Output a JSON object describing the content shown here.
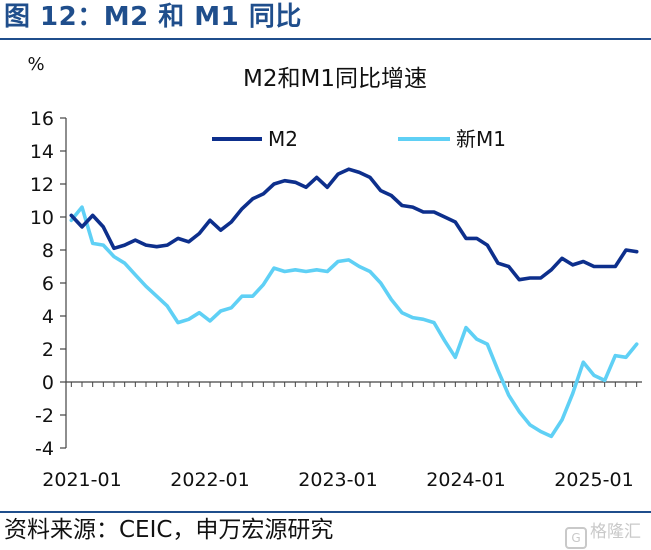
{
  "figure_title": "图 12：M2 和 M1 同比",
  "source_note": "资料来源：CEIC，申万宏源研究",
  "watermark": "格隆汇",
  "chart_data": {
    "type": "line",
    "title": "M2和M1同比增速",
    "y_unit": "%",
    "xlabel": "",
    "ylabel": "",
    "ylim": [
      -4,
      16
    ],
    "y_ticks": [
      -4,
      -2,
      0,
      2,
      4,
      6,
      8,
      10,
      12,
      14,
      16
    ],
    "x_tick_labels": [
      "2021-01",
      "2022-01",
      "2023-01",
      "2024-01",
      "2025-01"
    ],
    "grid": false,
    "legend_position": "top",
    "colors": {
      "M2": "#0d2f8c",
      "新M1": "#5fd0f5"
    },
    "x": [
      "2020-12",
      "2021-01",
      "2021-02",
      "2021-03",
      "2021-04",
      "2021-05",
      "2021-06",
      "2021-07",
      "2021-08",
      "2021-09",
      "2021-10",
      "2021-11",
      "2021-12",
      "2022-01",
      "2022-02",
      "2022-03",
      "2022-04",
      "2022-05",
      "2022-06",
      "2022-07",
      "2022-08",
      "2022-09",
      "2022-10",
      "2022-11",
      "2022-12",
      "2023-01",
      "2023-02",
      "2023-03",
      "2023-04",
      "2023-05",
      "2023-06",
      "2023-07",
      "2023-08",
      "2023-09",
      "2023-10",
      "2023-11",
      "2023-12",
      "2024-01",
      "2024-02",
      "2024-03",
      "2024-04",
      "2024-05",
      "2024-06",
      "2024-07",
      "2024-08",
      "2024-09",
      "2024-10",
      "2024-11",
      "2024-12",
      "2025-01",
      "2025-02",
      "2025-03",
      "2025-04",
      "2025-05"
    ],
    "series": [
      {
        "name": "M2",
        "values": [
          10.1,
          9.4,
          10.1,
          9.4,
          8.1,
          8.3,
          8.6,
          8.3,
          8.2,
          8.3,
          8.7,
          8.5,
          9.0,
          9.8,
          9.2,
          9.7,
          10.5,
          11.1,
          11.4,
          12.0,
          12.2,
          12.1,
          11.8,
          12.4,
          11.8,
          12.6,
          12.9,
          12.7,
          12.4,
          11.6,
          11.3,
          10.7,
          10.6,
          10.3,
          10.3,
          10.0,
          9.7,
          8.7,
          8.7,
          8.3,
          7.2,
          7.0,
          6.2,
          6.3,
          6.3,
          6.8,
          7.5,
          7.1,
          7.3,
          7.0,
          7.0,
          7.0,
          8.0,
          7.9
        ]
      },
      {
        "name": "新M1",
        "values": [
          9.8,
          10.6,
          8.4,
          8.3,
          7.6,
          7.2,
          6.5,
          5.8,
          5.2,
          4.6,
          3.6,
          3.8,
          4.2,
          3.7,
          4.3,
          4.5,
          5.2,
          5.2,
          5.9,
          6.9,
          6.7,
          6.8,
          6.7,
          6.8,
          6.7,
          7.3,
          7.4,
          7.0,
          6.7,
          6.0,
          5.0,
          4.2,
          3.9,
          3.8,
          3.6,
          2.5,
          1.5,
          3.3,
          2.6,
          2.3,
          0.7,
          -0.8,
          -1.8,
          -2.6,
          -3.0,
          -3.3,
          -2.3,
          -0.7,
          1.2,
          0.4,
          0.1,
          1.6,
          1.5,
          2.3
        ]
      }
    ]
  }
}
